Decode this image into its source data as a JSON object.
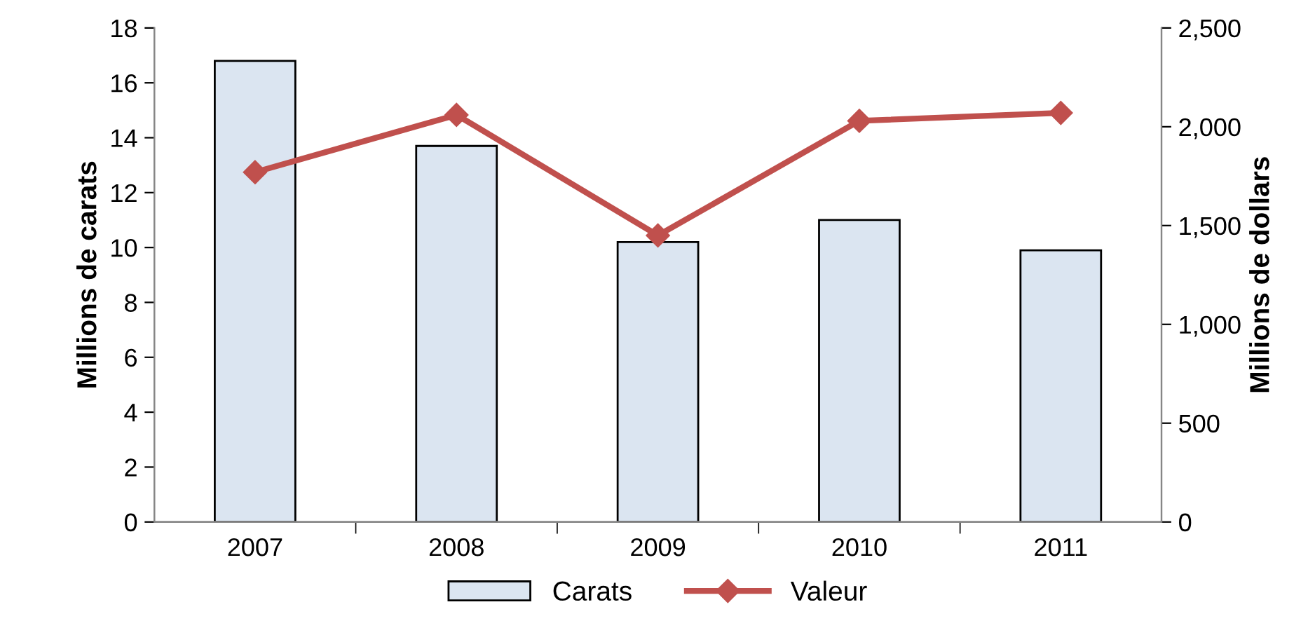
{
  "chart_data": {
    "type": "bar",
    "categories": [
      "2007",
      "2008",
      "2009",
      "2010",
      "2011"
    ],
    "ylabel": "Millions de carats",
    "y2label": "Millions de dollars",
    "series": [
      {
        "name": "Carats",
        "color": "#dbe5f1",
        "values": [
          16.8,
          13.7,
          10.2,
          11.0,
          9.9
        ]
      },
      {
        "name": "Valeur",
        "type": "line",
        "axis": "y2",
        "color": "#c0504d",
        "marker": "diamond",
        "values": [
          1770,
          2060,
          1450,
          2030,
          2070
        ]
      }
    ],
    "ylim": [
      0,
      18
    ],
    "yticks": [
      0,
      2,
      4,
      6,
      8,
      10,
      12,
      14,
      16,
      18
    ],
    "y2lim": [
      0,
      2500
    ],
    "y2ticks": [
      {
        "value": 0,
        "label": "0"
      },
      {
        "value": 500,
        "label": "500"
      },
      {
        "value": 1000,
        "label": "1,000"
      },
      {
        "value": 1500,
        "label": "1,500"
      },
      {
        "value": 2000,
        "label": "2,000"
      },
      {
        "value": 2500,
        "label": "2,500"
      }
    ],
    "grid": false,
    "legend": "bottom"
  }
}
